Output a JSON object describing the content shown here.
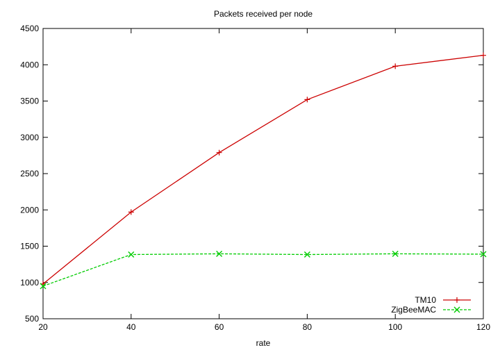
{
  "chart_data": {
    "type": "line",
    "title": "Packets received per node",
    "xlabel": "rate",
    "ylabel": "",
    "xlim": [
      20,
      120
    ],
    "ylim": [
      500,
      4500
    ],
    "xticks": [
      20,
      40,
      60,
      80,
      100,
      120
    ],
    "yticks": [
      500,
      1000,
      1500,
      2000,
      2500,
      3000,
      3500,
      4000,
      4500
    ],
    "grid": false,
    "legend_position": "bottom-right",
    "series": [
      {
        "name": "TM10",
        "color": "#cc0000",
        "marker": "plus",
        "dash": "solid",
        "x": [
          20,
          40,
          60,
          80,
          100,
          120
        ],
        "y": [
          980,
          1970,
          2790,
          3520,
          3980,
          4130
        ]
      },
      {
        "name": "ZigBeeMAC",
        "color": "#00cc00",
        "marker": "cross",
        "dash": "dashed",
        "x": [
          20,
          40,
          60,
          80,
          100,
          120
        ],
        "y": [
          950,
          1385,
          1395,
          1385,
          1395,
          1390
        ]
      }
    ]
  }
}
